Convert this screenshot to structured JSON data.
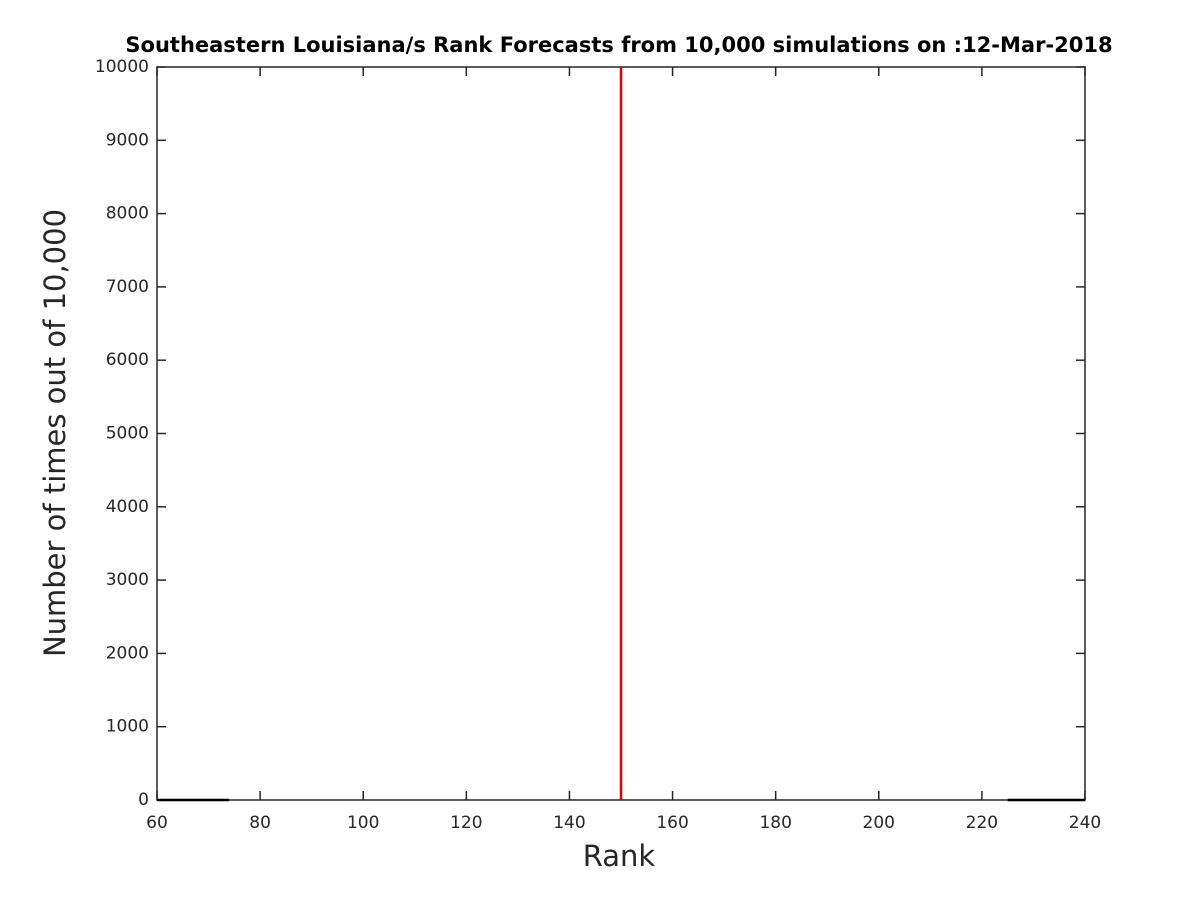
{
  "chart_data": {
    "type": "line",
    "title": "Southeastern Louisiana/s Rank Forecasts from 10,000 simulations on :12-Mar-2018",
    "xlabel": "Rank",
    "ylabel": "Number of times out of 10,000",
    "series": [
      {
        "color": "#000000",
        "x": [
          60,
          74
        ],
        "values": [
          0,
          0
        ]
      },
      {
        "color": "#000000",
        "x": [
          225,
          240
        ],
        "values": [
          0,
          0
        ]
      },
      {
        "color": "#e00000",
        "x": [
          150,
          150
        ],
        "values": [
          0,
          10000
        ]
      }
    ],
    "xlim": [
      60,
      240
    ],
    "xticks": [
      60,
      80,
      100,
      120,
      140,
      160,
      180,
      200,
      220,
      240
    ],
    "ylim": [
      0,
      10000
    ],
    "yticks": [
      0,
      1000,
      2000,
      3000,
      4000,
      5000,
      6000,
      7000,
      8000,
      9000,
      10000
    ],
    "grid": false
  }
}
